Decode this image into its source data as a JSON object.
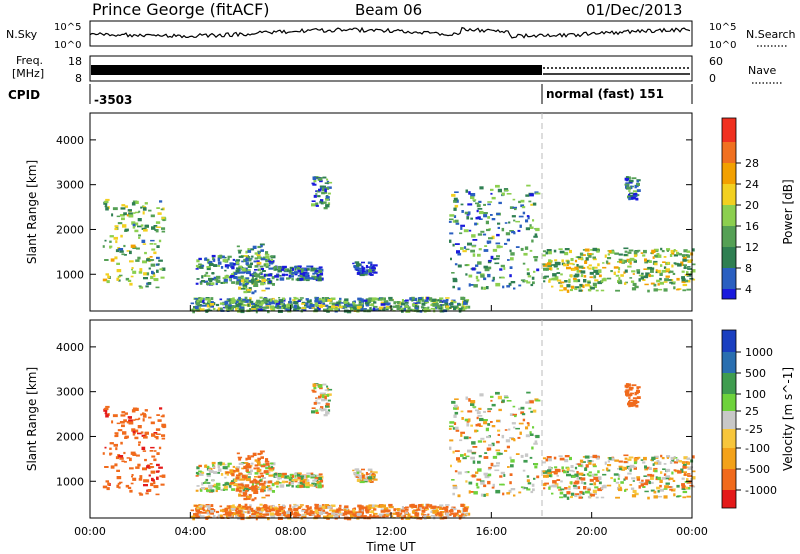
{
  "header": {
    "station": "Prince George (fitACF)",
    "beam": "Beam 06",
    "date": "01/Dec/2013"
  },
  "status_panels": {
    "nsky_label": "N.Sky",
    "nsky_ticks": [
      "10^5",
      "10^0"
    ],
    "nsearch_label": "N.Search",
    "nsearch_ticks": [
      "10^5",
      "10^0"
    ],
    "freq_label_line1": "Freq.",
    "freq_label_line2": "[MHz]",
    "freq_ticks": [
      "18",
      "8"
    ],
    "nave_label": "Nave",
    "nave_ticks": [
      "60",
      "0"
    ],
    "cpid_label": "CPID",
    "cpid_left": "-3503",
    "cpid_right": "normal (fast) 151"
  },
  "time_axis": {
    "title": "Time UT",
    "ticks": [
      "00:00",
      "04:00",
      "08:00",
      "12:00",
      "16:00",
      "20:00",
      "00:00"
    ]
  },
  "power_panel": {
    "ylabel": "Slant Range [km]",
    "yticks": [
      "4000",
      "3000",
      "2000",
      "1000"
    ],
    "colorbar_label": "Power [dB]",
    "colorbar_ticks": [
      "28",
      "24",
      "20",
      "16",
      "12",
      "8",
      "4"
    ]
  },
  "velocity_panel": {
    "ylabel": "Slant Range [km]",
    "yticks": [
      "4000",
      "3000",
      "2000",
      "1000"
    ],
    "colorbar_label": "Velocity [m s^-1]",
    "colorbar_ticks": [
      "1000",
      "500",
      "100",
      "25",
      "-25",
      "-100",
      "-500",
      "-1000"
    ]
  },
  "chart_data": [
    {
      "type": "heatmap",
      "name": "power",
      "x_range_hours": [
        0,
        24
      ],
      "ylim": [
        180,
        4600
      ],
      "units": "dB",
      "colorscale": [
        "#1a1adc",
        "#2a5fc0",
        "#2f7f52",
        "#55a055",
        "#8ccf4f",
        "#f2d020",
        "#f2a000",
        "#f07020",
        "#f03020"
      ],
      "scale_range": [
        0,
        32
      ],
      "regions": [
        {
          "t0": 0.5,
          "t1": 2.9,
          "r0": 700,
          "r1": 2700,
          "level": 14
        },
        {
          "t0": 4.2,
          "t1": 7.3,
          "r0": 800,
          "r1": 1450,
          "level": 8
        },
        {
          "t0": 5.8,
          "t1": 7.0,
          "r0": 600,
          "r1": 1700,
          "level": 12
        },
        {
          "t0": 7.3,
          "t1": 9.2,
          "r0": 900,
          "r1": 1200,
          "level": 6
        },
        {
          "t0": 8.8,
          "t1": 9.5,
          "r0": 2500,
          "r1": 3200,
          "level": 9
        },
        {
          "t0": 10.4,
          "t1": 11.3,
          "r0": 1000,
          "r1": 1300,
          "level": 5
        },
        {
          "t0": 14.3,
          "t1": 17.8,
          "r0": 700,
          "r1": 3000,
          "level": 10
        },
        {
          "t0": 18.0,
          "t1": 24.0,
          "r0": 650,
          "r1": 1600,
          "level": 16
        },
        {
          "t0": 21.3,
          "t1": 21.8,
          "r0": 2700,
          "r1": 3200,
          "level": 7
        },
        {
          "t0": 4.0,
          "t1": 15.0,
          "r0": 200,
          "r1": 500,
          "level": 11
        }
      ]
    },
    {
      "type": "heatmap",
      "name": "velocity",
      "x_range_hours": [
        0,
        24
      ],
      "ylim": [
        180,
        4600
      ],
      "units": "m s^-1",
      "colorscale": [
        "#e41a1a",
        "#f06a1c",
        "#f3a21a",
        "#f7c63c",
        "#c8c8c8",
        "#c8c8c8",
        "#6ed23c",
        "#3f9c4f",
        "#2a6fb0",
        "#1a3fc0"
      ],
      "regions": [
        {
          "t0": 0.5,
          "t1": 2.9,
          "r0": 700,
          "r1": 2700,
          "velocity": -400
        },
        {
          "t0": 4.2,
          "t1": 7.3,
          "r0": 800,
          "r1": 1450,
          "velocity": 0
        },
        {
          "t0": 5.8,
          "t1": 7.0,
          "r0": 600,
          "r1": 1700,
          "velocity": -200
        },
        {
          "t0": 7.3,
          "t1": 9.2,
          "r0": 900,
          "r1": 1200,
          "velocity": 0
        },
        {
          "t0": 8.8,
          "t1": 9.5,
          "r0": 2500,
          "r1": 3200,
          "velocity": 0
        },
        {
          "t0": 10.4,
          "t1": 11.3,
          "r0": 1000,
          "r1": 1300,
          "velocity": 0
        },
        {
          "t0": 14.3,
          "t1": 17.8,
          "r0": 700,
          "r1": 3000,
          "velocity": 0
        },
        {
          "t0": 18.0,
          "t1": 24.0,
          "r0": 650,
          "r1": 1600,
          "velocity": 0
        },
        {
          "t0": 21.3,
          "t1": 21.8,
          "r0": 2700,
          "r1": 3200,
          "velocity": -300
        },
        {
          "t0": 4.0,
          "t1": 15.0,
          "r0": 200,
          "r1": 500,
          "velocity": -120
        }
      ]
    }
  ]
}
